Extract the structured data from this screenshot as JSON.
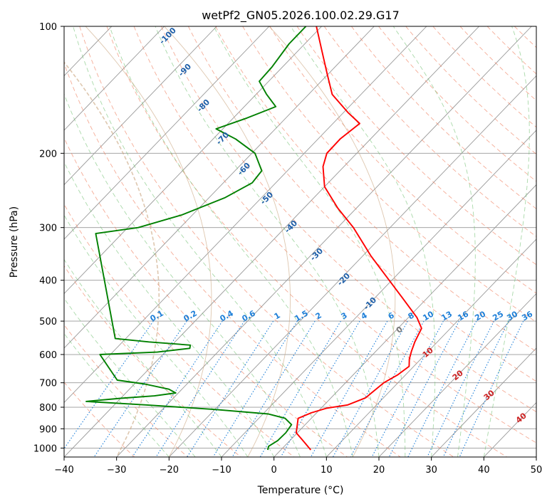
{
  "chart_data": {
    "type": "skew-t",
    "title": "wetPf2_GN05.2026.100.02.29.G17",
    "xlabel": "Temperature (°C)",
    "ylabel": "Pressure (hPa)",
    "xlim": [
      -40,
      50
    ],
    "ylim": [
      1050,
      100
    ],
    "y_scale": "log",
    "grid": true,
    "x_ticks": [
      "−40",
      "−30",
      "−20",
      "−10",
      "0",
      "10",
      "20",
      "30",
      "40",
      "50"
    ],
    "x_tick_values": [
      -40,
      -30,
      -20,
      -10,
      0,
      10,
      20,
      30,
      40,
      50
    ],
    "y_ticks": [
      "100",
      "200",
      "300",
      "400",
      "500",
      "600",
      "700",
      "800",
      "900",
      "1000"
    ],
    "y_tick_values": [
      100,
      200,
      300,
      400,
      500,
      600,
      700,
      800,
      900,
      1000
    ],
    "colors": {
      "temperature": "#ff0000",
      "dewpoint": "#008000",
      "isotherm": "#999999",
      "dry_adiabat": "#f08060",
      "moist_adiabat": "#70c070",
      "mixing_ratio": "#1e7fd8",
      "isotherm_label": "#1f5fa8",
      "lcl_label": "#cc2222",
      "curve": "#c8a27a"
    },
    "temperature_profile": [
      {
        "p": 1010,
        "t": 5.7
      },
      {
        "p": 960,
        "t": 2.5
      },
      {
        "p": 920,
        "t": -0.2
      },
      {
        "p": 880,
        "t": -1.5
      },
      {
        "p": 850,
        "t": -2.5
      },
      {
        "p": 825,
        "t": -1.0
      },
      {
        "p": 805,
        "t": 1.0
      },
      {
        "p": 790,
        "t": 4.5
      },
      {
        "p": 760,
        "t": 6.6
      },
      {
        "p": 740,
        "t": 6.8
      },
      {
        "p": 700,
        "t": 7.3
      },
      {
        "p": 670,
        "t": 8.5
      },
      {
        "p": 640,
        "t": 9.1
      },
      {
        "p": 615,
        "t": 7.8
      },
      {
        "p": 590,
        "t": 6.8
      },
      {
        "p": 560,
        "t": 5.7
      },
      {
        "p": 520,
        "t": 4.5
      },
      {
        "p": 490,
        "t": 1.6
      },
      {
        "p": 440,
        "t": -4.8
      },
      {
        "p": 400,
        "t": -10.5
      },
      {
        "p": 350,
        "t": -18.5
      },
      {
        "p": 300,
        "t": -27.0
      },
      {
        "p": 270,
        "t": -33.5
      },
      {
        "p": 240,
        "t": -40.0
      },
      {
        "p": 215,
        "t": -44.0
      },
      {
        "p": 200,
        "t": -45.7
      },
      {
        "p": 185,
        "t": -45.8
      },
      {
        "p": 170,
        "t": -44.9
      },
      {
        "p": 160,
        "t": -49.2
      },
      {
        "p": 145,
        "t": -55.5
      },
      {
        "p": 130,
        "t": -60.1
      },
      {
        "p": 115,
        "t": -65.2
      },
      {
        "p": 100,
        "t": -71.0
      }
    ],
    "dewpoint_profile": [
      {
        "p": 1010,
        "t": -2.5
      },
      {
        "p": 990,
        "t": -3.0
      },
      {
        "p": 960,
        "t": -2.3
      },
      {
        "p": 920,
        "t": -2.2
      },
      {
        "p": 880,
        "t": -2.6
      },
      {
        "p": 850,
        "t": -5.0
      },
      {
        "p": 830,
        "t": -9.0
      },
      {
        "p": 810,
        "t": -20.0
      },
      {
        "p": 790,
        "t": -34.0
      },
      {
        "p": 775,
        "t": -46.0
      },
      {
        "p": 762,
        "t": -40.0
      },
      {
        "p": 752,
        "t": -34.0
      },
      {
        "p": 740,
        "t": -30.5
      },
      {
        "p": 725,
        "t": -32.5
      },
      {
        "p": 705,
        "t": -38.0
      },
      {
        "p": 690,
        "t": -44.0
      },
      {
        "p": 600,
        "t": -52.0
      },
      {
        "p": 592,
        "t": -41.5
      },
      {
        "p": 580,
        "t": -36.0
      },
      {
        "p": 570,
        "t": -36.5
      },
      {
        "p": 560,
        "t": -45.0
      },
      {
        "p": 550,
        "t": -52.0
      },
      {
        "p": 310,
        "t": -75.0
      },
      {
        "p": 300,
        "t": -68.0
      },
      {
        "p": 280,
        "t": -62.0
      },
      {
        "p": 255,
        "t": -57.0
      },
      {
        "p": 235,
        "t": -54.5
      },
      {
        "p": 220,
        "t": -54.9
      },
      {
        "p": 200,
        "t": -59.4
      },
      {
        "p": 185,
        "t": -65.7
      },
      {
        "p": 175,
        "t": -71.3
      },
      {
        "p": 165,
        "t": -67.4
      },
      {
        "p": 155,
        "t": -64.0
      },
      {
        "p": 145,
        "t": -68.0
      },
      {
        "p": 135,
        "t": -71.8
      },
      {
        "p": 125,
        "t": -72.0
      },
      {
        "p": 110,
        "t": -73.0
      },
      {
        "p": 100,
        "t": -73.0
      }
    ],
    "isotherm_labels": [
      "-100",
      "-90",
      "-80",
      "-70",
      "-60",
      "-50",
      "-40",
      "-30",
      "-20",
      "-10"
    ],
    "isotherm_label_values": [
      -100,
      -90,
      -80,
      -70,
      -60,
      -50,
      -40,
      -30,
      -20,
      -10
    ],
    "mixing_ratio_labels": [
      "0.1",
      "0.2",
      "0.4",
      "0.6",
      "1",
      "1.5",
      "2",
      "3",
      "4",
      "6",
      "8",
      "10",
      "13",
      "16",
      "20",
      "25",
      "30",
      "36"
    ],
    "mixing_ratio_values": [
      0.1,
      0.2,
      0.4,
      0.6,
      1,
      1.5,
      2,
      3,
      4,
      6,
      8,
      10,
      13,
      16,
      20,
      25,
      30,
      36
    ],
    "lcl_labels": [
      "0",
      "10",
      "20",
      "30",
      "40"
    ],
    "lcl_label_values": [
      0,
      10,
      20,
      30,
      40
    ]
  }
}
